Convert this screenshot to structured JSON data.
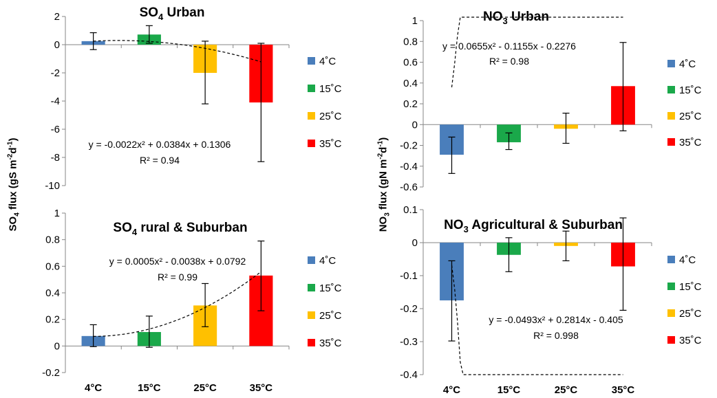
{
  "chart_data": [
    {
      "type": "bar",
      "title": "SO4 Urban",
      "title_main": "SO",
      "title_sub": "4",
      "title_rest": " Urban",
      "categories": [
        "4°C",
        "15°C",
        "25°C",
        "35°C"
      ],
      "show_category_labels": false,
      "values": [
        0.25,
        0.72,
        -2.0,
        -4.1
      ],
      "error_low": [
        -0.35,
        0.1,
        -4.2,
        -8.3
      ],
      "error_high": [
        0.85,
        1.35,
        0.25,
        0.1
      ],
      "colors": [
        "#4a7ebb",
        "#1aa84a",
        "#ffc000",
        "#ff0000"
      ],
      "ylim": [
        -10,
        2
      ],
      "yticks": [
        -10,
        -8,
        -6,
        -4,
        -2,
        0,
        2
      ],
      "ytick_labels": [
        "-10",
        "-8",
        "-6",
        "-4",
        "-2",
        "0",
        "2"
      ],
      "trendline": {
        "coefficients": [
          -0.0022,
          0.0384,
          0.1306
        ]
      },
      "equation": "y = -0.0022x² + 0.0384x + 0.1306",
      "r2": "R² = 0.94",
      "legend": [
        "4˚C",
        "15˚C",
        "25˚C",
        "35˚C"
      ]
    },
    {
      "type": "bar",
      "title": "NO3 Urban",
      "title_main": "NO",
      "title_sub": "3",
      "title_rest": " Urban",
      "categories": [
        "4°C",
        "15°C",
        "25°C",
        "35°C"
      ],
      "show_category_labels": false,
      "values": [
        -0.29,
        -0.17,
        -0.04,
        0.37
      ],
      "error_low": [
        -0.47,
        -0.24,
        -0.18,
        -0.06
      ],
      "error_high": [
        -0.12,
        -0.08,
        0.11,
        0.79
      ],
      "colors": [
        "#4a7ebb",
        "#1aa84a",
        "#ffc000",
        "#ff0000"
      ],
      "ylim": [
        -0.6,
        1
      ],
      "yticks": [
        -0.6,
        -0.4,
        -0.2,
        0,
        0.2,
        0.4,
        0.6,
        0.8,
        1
      ],
      "ytick_labels": [
        "-0.6",
        "-0.4",
        "-0.2",
        "0",
        "0.2",
        "0.4",
        "0.6",
        "0.8",
        "1"
      ],
      "trendline": {
        "coefficients": [
          0.0655,
          -0.1155,
          -0.2276
        ]
      },
      "equation": "y = 0.0655x² - 0.1155x - 0.2276",
      "r2": "R² = 0.98",
      "legend": [
        "4˚C",
        "15˚C",
        "25˚C",
        "35˚C"
      ]
    },
    {
      "type": "bar",
      "title": "SO4 rural & Suburban",
      "title_main": "SO",
      "title_sub": "4",
      "title_rest": " rural & Suburban",
      "categories": [
        "4°C",
        "15°C",
        "25°C",
        "35°C"
      ],
      "show_category_labels": true,
      "values": [
        0.075,
        0.105,
        0.305,
        0.53
      ],
      "error_low": [
        -0.005,
        -0.01,
        0.145,
        0.265
      ],
      "error_high": [
        0.16,
        0.225,
        0.47,
        0.79
      ],
      "colors": [
        "#4a7ebb",
        "#1aa84a",
        "#ffc000",
        "#ff0000"
      ],
      "ylim": [
        -0.2,
        1
      ],
      "yticks": [
        -0.2,
        0,
        0.2,
        0.4,
        0.6,
        0.8,
        1
      ],
      "ytick_labels": [
        "-0.2",
        "0",
        "0.2",
        "0.4",
        "0.6",
        "0.8",
        "1"
      ],
      "trendline": {
        "coefficients": [
          0.0005,
          -0.0038,
          0.0792
        ]
      },
      "equation": "y = 0.0005x² - 0.0038x + 0.0792",
      "r2": "R² = 0.99",
      "legend": [
        "4˚C",
        "15˚C",
        "25˚C",
        "35˚C"
      ]
    },
    {
      "type": "bar",
      "title": "NO3 Agricultural & Suburban",
      "title_main": "NO",
      "title_sub": "3",
      "title_rest": " Agricultural & Suburban",
      "categories": [
        "4°C",
        "15°C",
        "25°C",
        "35°C"
      ],
      "show_category_labels": true,
      "values": [
        -0.175,
        -0.037,
        -0.01,
        -0.072
      ],
      "error_low": [
        -0.298,
        -0.088,
        -0.055,
        -0.205
      ],
      "error_high": [
        -0.055,
        0.015,
        0.035,
        0.075
      ],
      "colors": [
        "#4a7ebb",
        "#1aa84a",
        "#ffc000",
        "#ff0000"
      ],
      "ylim": [
        -0.4,
        0.1
      ],
      "yticks": [
        -0.4,
        -0.3,
        -0.2,
        -0.1,
        0,
        0.1
      ],
      "ytick_labels": [
        "-0.4",
        "-0.3",
        "-0.2",
        "-0.1",
        "0",
        "0.1"
      ],
      "trendline": {
        "coefficients": [
          -0.0493,
          0.2814,
          -0.405
        ]
      },
      "equation": "y = -0.0493x² + 0.2814x - 0.405",
      "r2": "R² = 0.998",
      "legend": [
        "4˚C",
        "15˚C",
        "25˚C",
        "35˚C"
      ]
    }
  ],
  "ylabels": {
    "left": {
      "base": "SO",
      "sub": "4",
      "mid": " flux  (gS m",
      "sup1": "-2",
      "mid2": "d",
      "sup2": "-1",
      "end": ")"
    },
    "right": {
      "base": "NO",
      "sub": "3",
      "mid": " flux  (gN m",
      "sup1": "-2",
      "mid2": "d",
      "sup2": "-1",
      "end": ")"
    }
  }
}
